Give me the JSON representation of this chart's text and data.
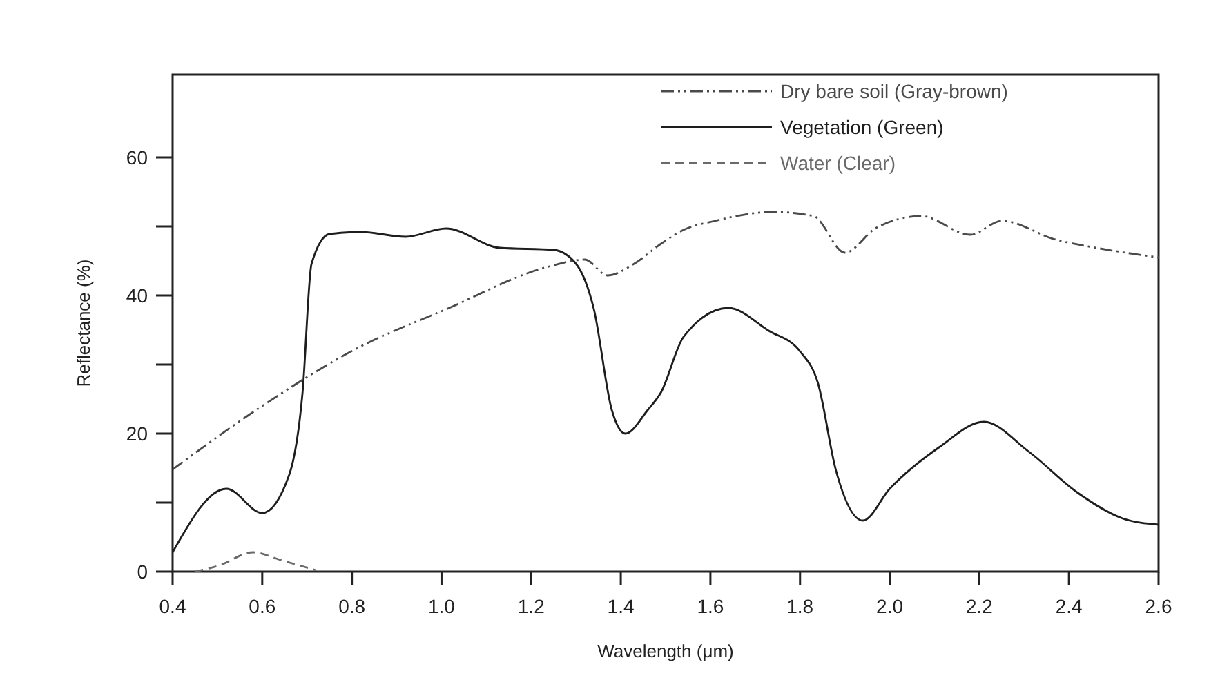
{
  "chart_data": {
    "type": "line",
    "xlabel": "Wavelength (μm)",
    "ylabel": "Reflectance (%)",
    "xlim": [
      0.4,
      2.6
    ],
    "xticks": [
      0.4,
      0.6,
      0.8,
      {
        "value": 1,
        "label": "1.0"
      },
      1.2,
      1.4,
      1.6,
      1.8,
      {
        "value": 2,
        "label": "2.0"
      },
      2.2,
      2.4,
      2.6
    ],
    "ylim": [
      0,
      72
    ],
    "yticks": [
      0,
      {
        "value": 10,
        "label": null
      },
      20,
      {
        "value": 30,
        "label": null
      },
      40,
      {
        "value": 50,
        "label": null
      },
      60
    ],
    "grid": false,
    "legend": "top right",
    "series": [
      {
        "name": "Dry bare soil (Gray-brown)",
        "color": "#4a4a4a",
        "line_style": "dashdot",
        "x": [
          0.4,
          0.6,
          0.81,
          1.01,
          1.24,
          1.32,
          1.37,
          1.43,
          1.49,
          1.54,
          1.61,
          1.74,
          1.83,
          1.9,
          1.97,
          2.07,
          2.18,
          2.25,
          2.37,
          2.47,
          2.6
        ],
        "values": [
          14.8,
          24,
          32.3,
          38,
          44.2,
          45.2,
          42.9,
          44.6,
          47.5,
          49.5,
          50.8,
          52.1,
          51.5,
          46.2,
          49.8,
          51.5,
          48.8,
          50.8,
          48.1,
          46.8,
          45.5
        ]
      },
      {
        "name": "Vegetation (Green)",
        "color": "#1e1e1e",
        "line_style": "solid",
        "x": [
          0.4,
          0.52,
          0.6,
          0.66,
          0.69,
          0.71,
          0.75,
          0.82,
          0.92,
          1.01,
          1.13,
          1.25,
          1.3,
          1.34,
          1.38,
          1.41,
          1.46,
          1.49,
          1.54,
          1.64,
          1.73,
          1.8,
          1.84,
          1.88,
          1.94,
          2.0,
          2.11,
          2.21,
          2.31,
          2.42,
          2.52,
          2.6
        ],
        "values": [
          2.8,
          12,
          8.5,
          14,
          26,
          44.6,
          48.9,
          49.2,
          48.5,
          49.7,
          46.9,
          46.6,
          44.6,
          38,
          23.4,
          20,
          23.4,
          26,
          34,
          38.2,
          34.9,
          31.9,
          27.3,
          14.7,
          7.4,
          12,
          18,
          21.7,
          17.4,
          11.4,
          7.7,
          6.8
        ]
      },
      {
        "name": "Water (Clear)",
        "color": "#6a6a6a",
        "line_style": "dashed",
        "x": [
          0.45,
          0.5,
          0.58,
          0.64,
          0.72
        ],
        "values": [
          0,
          0.8,
          2.8,
          1.7,
          0.2
        ]
      }
    ]
  }
}
